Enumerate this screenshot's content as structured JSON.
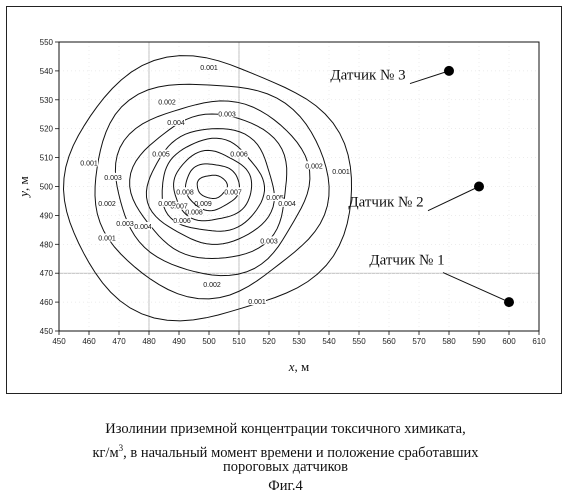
{
  "chart_data": {
    "type": "contour",
    "x_axis": {
      "label_var": "x",
      "label_unit": ", м",
      "range": [
        450,
        610
      ],
      "ticks": [
        450,
        460,
        470,
        480,
        490,
        500,
        510,
        520,
        530,
        540,
        550,
        560,
        570,
        580,
        590,
        600,
        610
      ]
    },
    "y_axis": {
      "label_var": "y",
      "label_unit": ", м",
      "range": [
        450,
        550
      ],
      "ticks": [
        450,
        460,
        470,
        480,
        490,
        500,
        510,
        520,
        530,
        540,
        550
      ]
    },
    "grid": "partial",
    "contours": [
      {
        "level": "0.009",
        "center": [
          501,
          500
        ],
        "rx": 5,
        "ry": 4,
        "labels": [
          [
            498,
            494
          ]
        ]
      },
      {
        "level": "0.008",
        "center": [
          501,
          500
        ],
        "rx": 9,
        "ry": 8,
        "labels": [
          [
            492,
            498
          ],
          [
            495,
            491
          ]
        ]
      },
      {
        "level": "0.007",
        "center": [
          501,
          500
        ],
        "rx": 13,
        "ry": 12,
        "labels": [
          [
            490,
            493
          ],
          [
            508,
            498
          ]
        ]
      },
      {
        "level": "0.006",
        "center": [
          501,
          500
        ],
        "rx": 17,
        "ry": 16,
        "labels": [
          [
            491,
            488
          ],
          [
            510,
            511
          ]
        ]
      },
      {
        "level": "0.005",
        "center": [
          501,
          500
        ],
        "rx": 21,
        "ry": 20,
        "labels": [
          [
            484,
            511
          ],
          [
            486,
            494
          ],
          [
            522,
            496
          ]
        ]
      },
      {
        "level": "0.004",
        "center": [
          501,
          500
        ],
        "rx": 26,
        "ry": 25,
        "labels": [
          [
            489,
            522
          ],
          [
            478,
            486
          ],
          [
            526,
            494
          ]
        ]
      },
      {
        "level": "0.003",
        "center": [
          501,
          500
        ],
        "rx": 32,
        "ry": 30,
        "labels": [
          [
            468,
            503
          ],
          [
            506,
            525
          ],
          [
            472,
            487
          ],
          [
            520,
            481
          ]
        ]
      },
      {
        "level": "0.002",
        "center": [
          500,
          500
        ],
        "rx": 39,
        "ry": 37,
        "labels": [
          [
            486,
            529
          ],
          [
            466,
            494
          ],
          [
            501,
            466
          ],
          [
            535,
            507
          ]
        ]
      },
      {
        "level": "0.001",
        "center": [
          499,
          499
        ],
        "rx": 48,
        "ry": 45,
        "labels": [
          [
            500,
            541
          ],
          [
            460,
            508
          ],
          [
            466,
            482
          ],
          [
            516,
            460
          ],
          [
            544,
            505
          ]
        ]
      }
    ],
    "sensors": [
      {
        "name": "Датчик № 3",
        "x": 580,
        "y": 540,
        "label_at": [
          553,
          537
        ]
      },
      {
        "name": "Датчик № 2",
        "x": 590,
        "y": 500,
        "label_at": [
          559,
          493
        ]
      },
      {
        "name": "Датчик № 1",
        "x": 600,
        "y": 460,
        "label_at": [
          566,
          473
        ]
      }
    ]
  },
  "caption": {
    "line1": "Изолинии приземной концентрации токсичного химиката,",
    "line2_pre": "кг/м",
    "line2_sup": "3",
    "line2_post": ", в начальный момент времени и положение сработавших",
    "line3": "пороговых датчиков"
  },
  "figure_label": "Фиг.4",
  "colors": {
    "line": "#111111",
    "grid": "#9a9a9a",
    "sensor": "#000000"
  }
}
